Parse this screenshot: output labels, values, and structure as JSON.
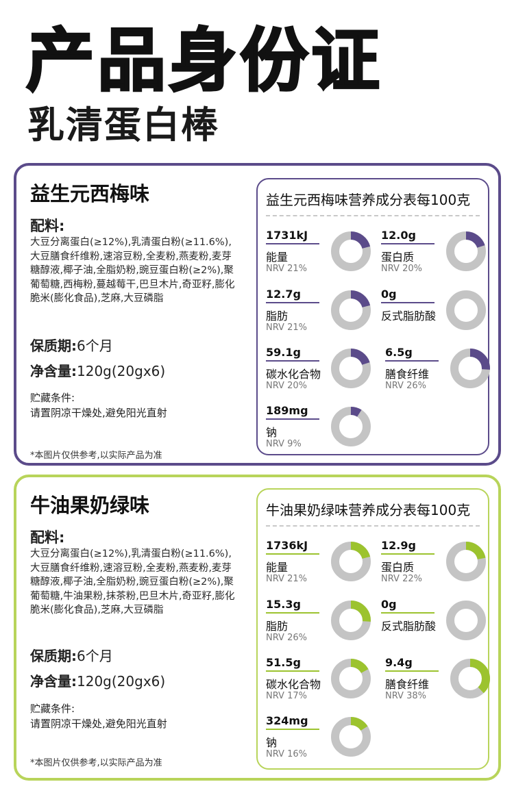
{
  "header": {
    "title": "产品身份证",
    "subtitle": "乳清蛋白棒"
  },
  "colors": {
    "purple": "#5b4b8a",
    "green": "#9cc32e",
    "ring_gray": "#c4c4c4"
  },
  "flavors": [
    {
      "name": "益生元西梅味",
      "ingredients_label": "配料:",
      "ingredients": "大豆分离蛋白(≥12%),乳清蛋白粉(≥11.6%),大豆膳食纤维粉,速溶豆粉,全麦粉,燕麦粉,麦芽糖醇液,椰子油,全脂奶粉,豌豆蛋白粉(≥2%),聚葡萄糖,西梅粉,蔓越莓干,巴旦木片,奇亚籽,膨化脆米(膨化食品),芝麻,大豆磷脂",
      "shelf_life_label": "保质期:",
      "shelf_life": "6个月",
      "net_content_label": "净含量:",
      "net_content": "120g(20gx6)",
      "storage_label": "贮藏条件:",
      "storage": "请置阴凉干燥处,避免阳光直射",
      "disclaimer": "*本图片仅供参考,以实际产品为准",
      "nutrition_title": "益生元西梅味营养成分表每100克",
      "nutrients": [
        {
          "value": "1731kJ",
          "name": "能量",
          "nrv": "NRV 21%",
          "pct": 21
        },
        {
          "value": "12.0g",
          "name": "蛋白质",
          "nrv": "NRV 20%",
          "pct": 20
        },
        {
          "value": "12.7g",
          "name": "脂肪",
          "nrv": "NRV 21%",
          "pct": 21
        },
        {
          "value": "0g",
          "name": "反式脂肪酸",
          "nrv": "",
          "pct": 0
        },
        {
          "value": "59.1g",
          "name": "碳水化合物",
          "nrv": "NRV 20%",
          "pct": 20
        },
        {
          "value": "6.5g",
          "name": "膳食纤维",
          "nrv": "NRV 26%",
          "pct": 26
        },
        {
          "value": "189mg",
          "name": "钠",
          "nrv": "NRV 9%",
          "pct": 9
        }
      ]
    },
    {
      "name": "牛油果奶绿味",
      "ingredients_label": "配料:",
      "ingredients": "大豆分离蛋白(≥12%),乳清蛋白粉(≥11.6%),大豆膳食纤维粉,速溶豆粉,全麦粉,燕麦粉,麦芽糖醇液,椰子油,全脂奶粉,豌豆蛋白粉(≥2%),聚葡萄糖,牛油果粉,抹茶粉,巴旦木片,奇亚籽,膨化脆米(膨化食品),芝麻,大豆磷脂",
      "shelf_life_label": "保质期:",
      "shelf_life": "6个月",
      "net_content_label": "净含量:",
      "net_content": "120g(20gx6)",
      "storage_label": "贮藏条件:",
      "storage": "请置阴凉干燥处,避免阳光直射",
      "disclaimer": "*本图片仅供参考,以实际产品为准",
      "nutrition_title": "牛油果奶绿味营养成分表每100克",
      "nutrients": [
        {
          "value": "1736kJ",
          "name": "能量",
          "nrv": "NRV 21%",
          "pct": 21
        },
        {
          "value": "12.9g",
          "name": "蛋白质",
          "nrv": "NRV 22%",
          "pct": 22
        },
        {
          "value": "15.3g",
          "name": "脂肪",
          "nrv": "NRV 26%",
          "pct": 26
        },
        {
          "value": "0g",
          "name": "反式脂肪酸",
          "nrv": "",
          "pct": 0
        },
        {
          "value": "51.5g",
          "name": "碳水化合物",
          "nrv": "NRV 17%",
          "pct": 17
        },
        {
          "value": "9.4g",
          "name": "膳食纤维",
          "nrv": "NRV 38%",
          "pct": 38
        },
        {
          "value": "324mg",
          "name": "钠",
          "nrv": "NRV 16%",
          "pct": 16
        }
      ]
    }
  ]
}
